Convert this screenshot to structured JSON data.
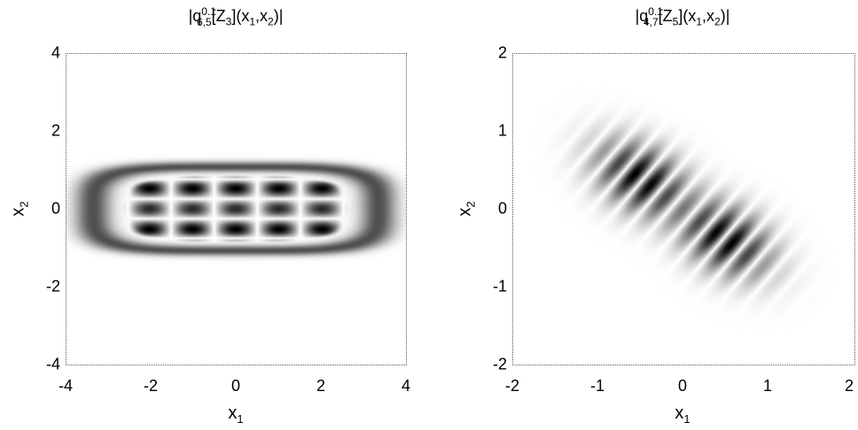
{
  "chart_data": [
    {
      "type": "heatmap",
      "title": {
        "prefix": "|q",
        "sup": "0.1",
        "sub": "6,5",
        "rest1": "[Z",
        "sub2": "3",
        "rest2": "](x",
        "sub3": "1",
        "rest3": ",x",
        "sub4": "2",
        "rest4": ")|"
      },
      "xlabel": {
        "base": "x",
        "sub": "1"
      },
      "ylabel": {
        "base": "x",
        "sub": "2"
      },
      "xlim": [
        -4,
        4
      ],
      "ylim": [
        -4,
        4
      ],
      "xticks": [
        "-4",
        "-2",
        "0",
        "2",
        "4"
      ],
      "yticks": [
        "-4",
        "-2",
        "0",
        "2",
        "4"
      ],
      "colormap": "grayscale magnitude (white = 0, black = max)",
      "grid": false
    },
    {
      "type": "heatmap",
      "title": {
        "prefix": "|q",
        "sup": "0.1",
        "sub": "4,7",
        "rest1": "[Z",
        "sub2": "5",
        "rest2": "](x",
        "sub3": "1",
        "rest3": ",x",
        "sub4": "2",
        "rest4": ")|"
      },
      "xlabel": {
        "base": "x",
        "sub": "1"
      },
      "ylabel": {
        "base": "x",
        "sub": "2"
      },
      "xlim": [
        -2,
        2
      ],
      "ylim": [
        -2,
        2
      ],
      "xticks": [
        "-2",
        "-1",
        "0",
        "1",
        "2"
      ],
      "yticks": [
        "-2",
        "-1",
        "0",
        "1",
        "2"
      ],
      "colormap": "grayscale magnitude (white = 0, black = max)",
      "grid": false
    }
  ]
}
